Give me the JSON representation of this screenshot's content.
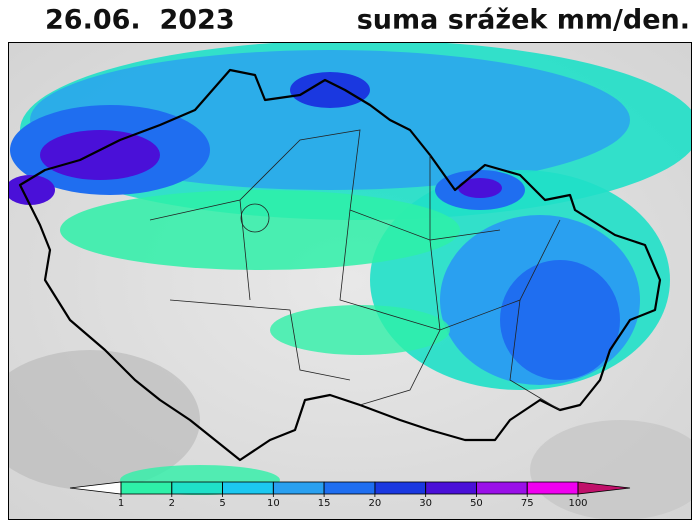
{
  "header": {
    "date": "26.06.  2023",
    "title": "suma srážek mm/den."
  },
  "legend": {
    "ticks": [
      1,
      2,
      5,
      10,
      15,
      20,
      30,
      50,
      75,
      100
    ],
    "colors": [
      "#ffffff",
      "#2ef0a8",
      "#1fe0c8",
      "#1cc8f0",
      "#2aa0f0",
      "#1f6ef0",
      "#1a38e0",
      "#4a10d8",
      "#9a10e8",
      "#f000f0",
      "#c0106a"
    ]
  }
}
